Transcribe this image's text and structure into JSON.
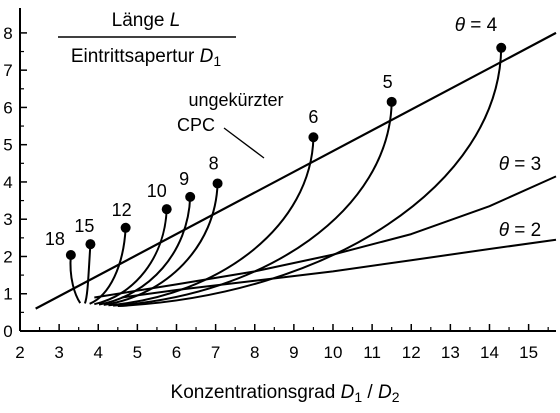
{
  "chart_data": {
    "type": "line",
    "title_fraction": {
      "numerator": [
        "Länge ",
        "L"
      ],
      "denominator": [
        "Eintrittsapertur ",
        "D",
        "1"
      ]
    },
    "xlabel": [
      "Konzentrationsgrad ",
      "D",
      "1",
      " / ",
      "D",
      "2"
    ],
    "ylabel": "",
    "xlim": [
      2,
      15.7
    ],
    "ylim": [
      0,
      8.4
    ],
    "xticks": [
      2,
      3,
      4,
      5,
      6,
      7,
      8,
      9,
      10,
      11,
      12,
      13,
      14,
      15
    ],
    "yticks": [
      0,
      1,
      2,
      3,
      4,
      5,
      6,
      7,
      8
    ],
    "grid": false,
    "main_curve": {
      "label": [
        "ungekürzter",
        "CPC"
      ],
      "x": [
        2.4,
        15.7
      ],
      "y": [
        0.6,
        8.0
      ]
    },
    "truncation_points": [
      {
        "label": "18",
        "x": 3.3,
        "y": 2.04
      },
      {
        "label": "15",
        "x": 3.8,
        "y": 2.33
      },
      {
        "label": "12",
        "x": 4.7,
        "y": 2.77
      },
      {
        "label": "10",
        "x": 5.75,
        "y": 3.27
      },
      {
        "label": "9",
        "x": 6.35,
        "y": 3.6
      },
      {
        "label": "8",
        "x": 7.05,
        "y": 3.96
      },
      {
        "label": "6",
        "x": 9.5,
        "y": 5.2
      },
      {
        "label": "5",
        "x": 11.5,
        "y": 6.15
      },
      {
        "label": "θ = 4",
        "x": 14.3,
        "y": 7.6
      }
    ],
    "series": [
      {
        "name": "θ = 3",
        "x": [
          3.9,
          6,
          8,
          10,
          12,
          14,
          15.7
        ],
        "y": [
          0.9,
          1.25,
          1.6,
          2.05,
          2.6,
          3.35,
          4.15
        ]
      },
      {
        "name": "θ = 2",
        "x": [
          4.6,
          6,
          8,
          10,
          12,
          14,
          15.7
        ],
        "y": [
          0.9,
          1.1,
          1.35,
          1.6,
          1.9,
          2.2,
          2.45
        ]
      }
    ],
    "theta_labels": [
      {
        "symbol": "θ",
        "eq": " = ",
        "value": "4"
      },
      {
        "symbol": "θ",
        "eq": " = ",
        "value": "3"
      },
      {
        "symbol": "θ",
        "eq": " = ",
        "value": "2"
      }
    ],
    "truncated_curves_endpoint_y": 0.9
  }
}
